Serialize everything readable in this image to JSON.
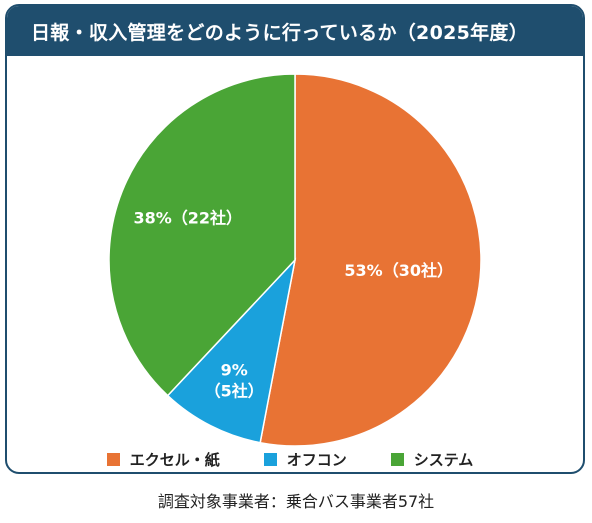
{
  "chart_data": {
    "type": "pie",
    "title": "日報・収入管理をどのように行っているか（2025年度）",
    "slices": [
      {
        "label": "エクセル・紙",
        "value": 53,
        "count": 30,
        "display": "53%（30社）",
        "color": "#e87334"
      },
      {
        "label": "オフコン",
        "value": 9,
        "count": 5,
        "display_pct": "9%",
        "display_count": "（5社）",
        "color": "#1aa1dc"
      },
      {
        "label": "システム",
        "value": 38,
        "count": 22,
        "display": "38%（22社）",
        "color": "#4aa536"
      }
    ],
    "legend_position": "bottom",
    "note": "調査対象事業者：乗合バス事業者57社"
  }
}
